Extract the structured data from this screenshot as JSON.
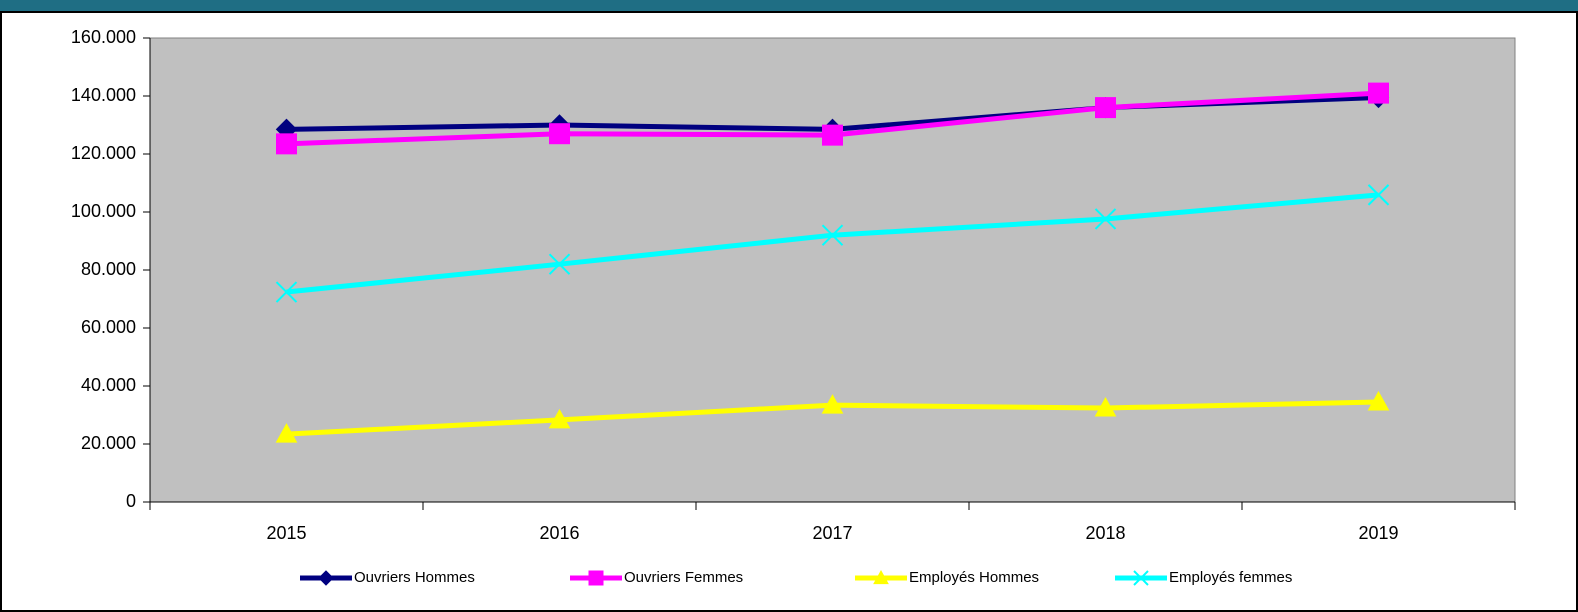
{
  "chart_data": {
    "type": "line",
    "categories": [
      "2015",
      "2016",
      "2017",
      "2018",
      "2019"
    ],
    "series": [
      {
        "name": "Ouvriers Hommes",
        "color": "#000080",
        "marker": "diamond",
        "values": [
          128500,
          130000,
          128500,
          136000,
          139500
        ]
      },
      {
        "name": "Ouvriers Femmes",
        "color": "#ff00ff",
        "marker": "square",
        "values": [
          123500,
          127000,
          126500,
          136000,
          141000
        ]
      },
      {
        "name": "Employés Hommes",
        "color": "#ffff00",
        "marker": "triangle",
        "values": [
          23400,
          28300,
          33400,
          32400,
          34500
        ]
      },
      {
        "name": "Employés femmes",
        "color": "#00ffff",
        "marker": "x",
        "values": [
          72400,
          82000,
          92000,
          97600,
          105900
        ]
      }
    ],
    "ylim": [
      0,
      160000
    ],
    "yticks": [
      0,
      {
        "value": 20000,
        "label": "20.000"
      },
      {
        "value": 40000,
        "label": "40.000"
      },
      {
        "value": 60000,
        "label": "60.000"
      },
      {
        "value": 80000,
        "label": "80.000"
      },
      {
        "value": 100000,
        "label": "100.000"
      },
      {
        "value": 120000,
        "label": "120.000"
      },
      {
        "value": 140000,
        "label": "140.000"
      },
      {
        "value": 160000,
        "label": "160.000"
      }
    ],
    "legend": "bottom",
    "plot_background": "#c0c0c0"
  }
}
